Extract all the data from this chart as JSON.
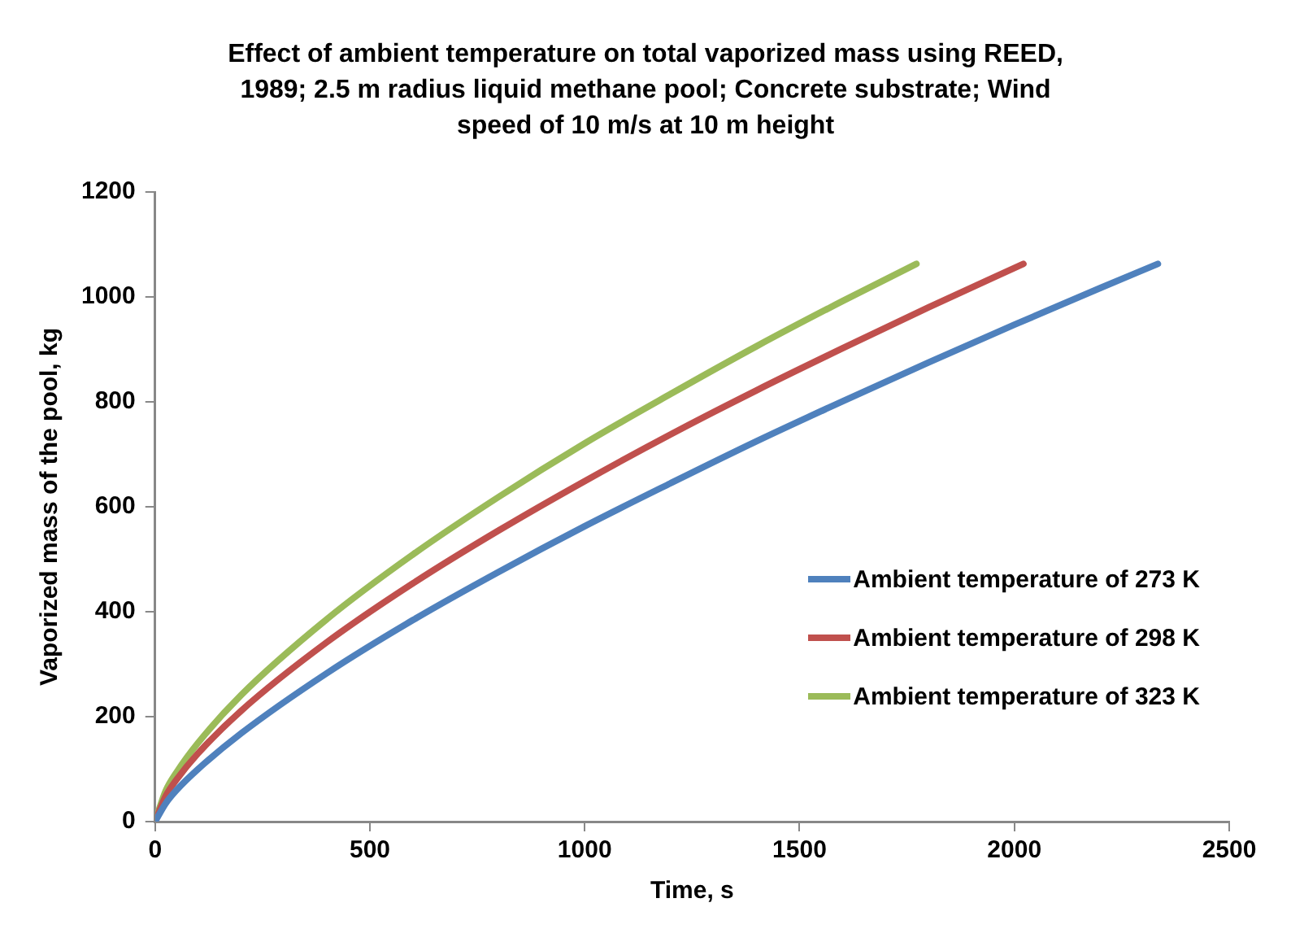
{
  "chart_data": {
    "type": "line",
    "title": "Effect of ambient temperature on total vaporized mass using REED, 1989;  2.5 m radius liquid methane pool; Concrete substrate; Wind speed of 10 m/s at 10 m height",
    "xlabel": "Time, s",
    "ylabel": "Vaporized mass of the pool, kg",
    "xlim": [
      0,
      2500
    ],
    "xticks": [
      0,
      500,
      1000,
      1500,
      2000,
      2500
    ],
    "ylim": [
      0,
      1200
    ],
    "yticks": [
      0,
      200,
      400,
      600,
      800,
      1000,
      1200
    ],
    "grid": false,
    "legend": "right",
    "marker": "none",
    "line_style": "solid",
    "series": [
      {
        "name": "Ambient temperature of 273 K",
        "color": "#4f81bd",
        "x": [
          0,
          25,
          50,
          100,
          200,
          400,
          600,
          800,
          1000,
          1200,
          1400,
          1600,
          1800,
          2000,
          2200,
          2334
        ],
        "values": [
          0,
          35,
          60,
          100,
          168,
          283,
          384,
          476,
          563,
          645,
          725,
          801,
          875,
          947,
          1017,
          1063
        ]
      },
      {
        "name": "Ambient temperature of 298 K",
        "color": "#c0504d",
        "x": [
          0,
          25,
          50,
          100,
          200,
          400,
          600,
          800,
          1000,
          1200,
          1400,
          1600,
          1800,
          2021
        ],
        "values": [
          0,
          49,
          80,
          130,
          211,
          342,
          454,
          555,
          649,
          738,
          822,
          902,
          980,
          1063
        ]
      },
      {
        "name": "Ambient temperature of 323 K",
        "color": "#9bbb59",
        "x": [
          0,
          25,
          50,
          100,
          200,
          400,
          600,
          800,
          1000,
          1200,
          1400,
          1600,
          1772
        ],
        "values": [
          0,
          59,
          94,
          150,
          241,
          386,
          509,
          619,
          721,
          815,
          906,
          992,
          1063
        ]
      }
    ]
  }
}
